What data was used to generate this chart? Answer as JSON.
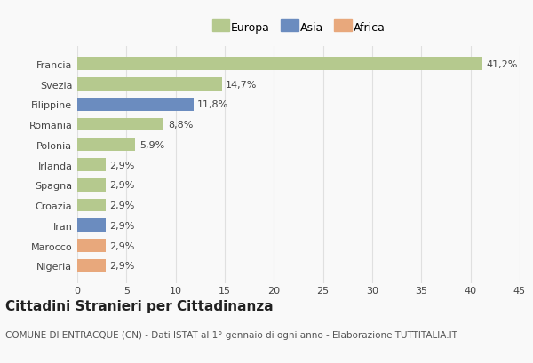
{
  "categories": [
    "Francia",
    "Svezia",
    "Filippine",
    "Romania",
    "Polonia",
    "Irlanda",
    "Spagna",
    "Croazia",
    "Iran",
    "Marocco",
    "Nigeria"
  ],
  "values": [
    41.2,
    14.7,
    11.8,
    8.8,
    5.9,
    2.9,
    2.9,
    2.9,
    2.9,
    2.9,
    2.9
  ],
  "labels": [
    "41,2%",
    "14,7%",
    "11,8%",
    "8,8%",
    "5,9%",
    "2,9%",
    "2,9%",
    "2,9%",
    "2,9%",
    "2,9%",
    "2,9%"
  ],
  "colors": [
    "#b5c98e",
    "#b5c98e",
    "#6b8cbf",
    "#b5c98e",
    "#b5c98e",
    "#b5c98e",
    "#b5c98e",
    "#b5c98e",
    "#6b8cbf",
    "#e8a87c",
    "#e8a87c"
  ],
  "legend_labels": [
    "Europa",
    "Asia",
    "Africa"
  ],
  "legend_colors": [
    "#b5c98e",
    "#6b8cbf",
    "#e8a87c"
  ],
  "title": "Cittadini Stranieri per Cittadinanza",
  "subtitle": "COMUNE DI ENTRACQUE (CN) - Dati ISTAT al 1° gennaio di ogni anno - Elaborazione TUTTITALIA.IT",
  "xlim": [
    0,
    45
  ],
  "xticks": [
    0,
    5,
    10,
    15,
    20,
    25,
    30,
    35,
    40,
    45
  ],
  "background_color": "#f9f9f9",
  "grid_color": "#e0e0e0",
  "title_fontsize": 11,
  "subtitle_fontsize": 7.5,
  "label_fontsize": 8,
  "tick_fontsize": 8,
  "legend_fontsize": 9
}
